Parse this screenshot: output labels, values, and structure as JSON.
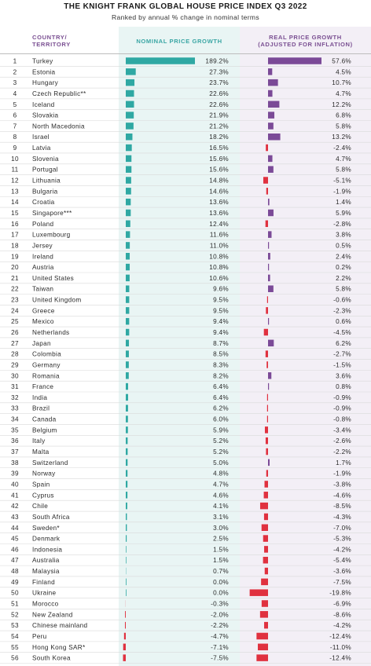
{
  "title": "THE KNIGHT FRANK GLOBAL HOUSE PRICE INDEX Q3 2022",
  "subtitle": "Ranked by annual % change in nominal terms",
  "headers": {
    "country_line1": "COUNTRY/",
    "country_line2": "TERRITORY",
    "nominal": "NOMINAL PRICE GROWTH",
    "real_line1": "REAL PRICE GROWTH",
    "real_line2": "(ADJUSTED FOR INFLATION)"
  },
  "colors": {
    "nominal_bar": "#2fa8a3",
    "real_positive": "#7b4a97",
    "real_negative": "#e0313f",
    "nominal_panel": "#e9f5f4",
    "real_panel": "#f3eff6",
    "header_purple": "#7a4f92",
    "header_teal": "#3aa6a4"
  },
  "chart_data": {
    "type": "bar",
    "title": "THE KNIGHT FRANK GLOBAL HOUSE PRICE INDEX Q3 2022",
    "subtitle": "Ranked by annual % change in nominal terms",
    "series": [
      {
        "name": "NOMINAL PRICE GROWTH",
        "unit": "%"
      },
      {
        "name": "REAL PRICE GROWTH (ADJUSTED FOR INFLATION)",
        "unit": "%"
      }
    ],
    "rows": [
      {
        "rank": "1",
        "country": "Turkey",
        "nominal": 189.2,
        "real": 57.6
      },
      {
        "rank": "2",
        "country": "Estonia",
        "nominal": 27.3,
        "real": 4.5
      },
      {
        "rank": "3",
        "country": "Hungary",
        "nominal": 23.7,
        "real": 10.7
      },
      {
        "rank": "4",
        "country": "Czech Republic**",
        "nominal": 22.6,
        "real": 4.7
      },
      {
        "rank": "5",
        "country": "Iceland",
        "nominal": 22.6,
        "real": 12.2
      },
      {
        "rank": "6",
        "country": "Slovakia",
        "nominal": 21.9,
        "real": 6.8
      },
      {
        "rank": "7",
        "country": "North Macedonia",
        "nominal": 21.2,
        "real": 5.8
      },
      {
        "rank": "8",
        "country": "Israel",
        "nominal": 18.2,
        "real": 13.2
      },
      {
        "rank": "9",
        "country": "Latvia",
        "nominal": 16.5,
        "real": -2.4
      },
      {
        "rank": "10",
        "country": "Slovenia",
        "nominal": 15.6,
        "real": 4.7
      },
      {
        "rank": "11",
        "country": "Portugal",
        "nominal": 15.6,
        "real": 5.8
      },
      {
        "rank": "12",
        "country": "Lithuania",
        "nominal": 14.8,
        "real": -5.1
      },
      {
        "rank": "13",
        "country": "Bulgaria",
        "nominal": 14.6,
        "real": -1.9
      },
      {
        "rank": "14",
        "country": "Croatia",
        "nominal": 13.6,
        "real": 1.4
      },
      {
        "rank": "15",
        "country": "Singapore***",
        "nominal": 13.6,
        "real": 5.9
      },
      {
        "rank": "16",
        "country": "Poland",
        "nominal": 12.4,
        "real": -2.8
      },
      {
        "rank": "17",
        "country": "Luxembourg",
        "nominal": 11.6,
        "real": 3.8
      },
      {
        "rank": "18",
        "country": "Jersey",
        "nominal": 11.0,
        "real": 0.5
      },
      {
        "rank": "19",
        "country": "Ireland",
        "nominal": 10.8,
        "real": 2.4
      },
      {
        "rank": "20",
        "country": "Austria",
        "nominal": 10.8,
        "real": 0.2
      },
      {
        "rank": "21",
        "country": "United States",
        "nominal": 10.6,
        "real": 2.2
      },
      {
        "rank": "22",
        "country": "Taiwan",
        "nominal": 9.6,
        "real": 5.8
      },
      {
        "rank": "23",
        "country": "United Kingdom",
        "nominal": 9.5,
        "real": -0.6
      },
      {
        "rank": "24",
        "country": "Greece",
        "nominal": 9.5,
        "real": -2.3
      },
      {
        "rank": "25",
        "country": "Mexico",
        "nominal": 9.4,
        "real": 0.6
      },
      {
        "rank": "26",
        "country": "Netherlands",
        "nominal": 9.4,
        "real": -4.5
      },
      {
        "rank": "27",
        "country": "Japan",
        "nominal": 8.7,
        "real": 6.2
      },
      {
        "rank": "28",
        "country": "Colombia",
        "nominal": 8.5,
        "real": -2.7
      },
      {
        "rank": "29",
        "country": "Germany",
        "nominal": 8.3,
        "real": -1.5
      },
      {
        "rank": "30",
        "country": "Romania",
        "nominal": 8.2,
        "real": 3.6
      },
      {
        "rank": "31",
        "country": "France",
        "nominal": 6.4,
        "real": 0.8
      },
      {
        "rank": "32",
        "country": "India",
        "nominal": 6.4,
        "real": -0.9
      },
      {
        "rank": "33",
        "country": "Brazil",
        "nominal": 6.2,
        "real": -0.9
      },
      {
        "rank": "34",
        "country": "Canada",
        "nominal": 6.0,
        "real": -0.8
      },
      {
        "rank": "35",
        "country": "Belgium",
        "nominal": 5.9,
        "real": -3.4
      },
      {
        "rank": "36",
        "country": "Italy",
        "nominal": 5.2,
        "real": -2.6
      },
      {
        "rank": "37",
        "country": "Malta",
        "nominal": 5.2,
        "real": -2.2
      },
      {
        "rank": "38",
        "country": "Switzerland",
        "nominal": 5.0,
        "real": 1.7
      },
      {
        "rank": "39",
        "country": "Norway",
        "nominal": 4.8,
        "real": -1.9
      },
      {
        "rank": "40",
        "country": "Spain",
        "nominal": 4.7,
        "real": -3.8
      },
      {
        "rank": "41",
        "country": "Cyprus",
        "nominal": 4.6,
        "real": -4.6
      },
      {
        "rank": "42",
        "country": "Chile",
        "nominal": 4.1,
        "real": -8.5
      },
      {
        "rank": "43",
        "country": "South Africa",
        "nominal": 3.1,
        "real": -4.3
      },
      {
        "rank": "44",
        "country": "Sweden*",
        "nominal": 3.0,
        "real": -7.0
      },
      {
        "rank": "45",
        "country": "Denmark",
        "nominal": 2.5,
        "real": -5.3
      },
      {
        "rank": "46",
        "country": "Indonesia",
        "nominal": 1.5,
        "real": -4.2
      },
      {
        "rank": "47",
        "country": "Australia",
        "nominal": 1.5,
        "real": -5.4
      },
      {
        "rank": "48",
        "country": "Malaysia",
        "nominal": 0.7,
        "real": -3.6
      },
      {
        "rank": "49",
        "country": "Finland",
        "nominal": 0.0,
        "real": -7.5
      },
      {
        "rank": "50",
        "country": "Ukraine",
        "nominal": 0.0,
        "real": -19.8
      },
      {
        "rank": "51",
        "country": "Morocco",
        "nominal": -0.3,
        "real": -6.9
      },
      {
        "rank": "52",
        "country": "New Zealand",
        "nominal": -2.0,
        "real": -8.6
      },
      {
        "rank": "53",
        "country": "Chinese mainland",
        "nominal": -2.2,
        "real": -4.2
      },
      {
        "rank": "54",
        "country": "Peru",
        "nominal": -4.7,
        "real": -12.4
      },
      {
        "rank": "55",
        "country": "Hong Kong SAR*",
        "nominal": -7.1,
        "real": -11.0
      },
      {
        "rank": "56",
        "country": "South Korea",
        "nominal": -7.5,
        "real": -12.4
      }
    ]
  }
}
